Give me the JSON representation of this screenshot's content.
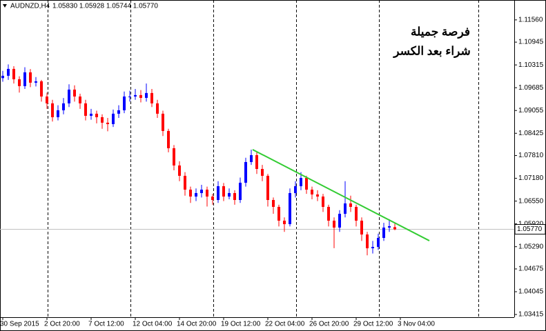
{
  "chart_data": {
    "type": "candlestick",
    "symbol": "AUDNZD,H4",
    "ohlc_text": "1.05830 1.05928 1.05744 1.05770",
    "annotations": [
      "فرصة جميلة",
      "شراء بعد الكسر"
    ],
    "annotation_color": "#3a4fd0",
    "up_color": "#0000ff",
    "down_color": "#ff0000",
    "categories": [
      "30 Sep 2015",
      null,
      null,
      null,
      null,
      null,
      null,
      null,
      "2 Oct 20:00",
      null,
      null,
      null,
      null,
      null,
      null,
      null,
      "7 Oct 12:00",
      null,
      null,
      null,
      null,
      null,
      null,
      null,
      "12 Oct 04:00",
      null,
      null,
      null,
      null,
      null,
      null,
      null,
      "14 Oct 20:00",
      null,
      null,
      null,
      null,
      null,
      null,
      null,
      "19 Oct 12:00",
      null,
      null,
      null,
      null,
      null,
      null,
      null,
      "22 Oct 04:00",
      null,
      null,
      null,
      null,
      null,
      null,
      null,
      "26 Oct 20:00",
      null,
      null,
      null,
      null,
      null,
      null,
      null,
      "29 Oct 12:00",
      null,
      null,
      null,
      null,
      null,
      null,
      null,
      "3 Nov 04:00"
    ],
    "open": [
      1.0995,
      1.10015,
      1.10205,
      1.09919,
      1.09729,
      1.1011,
      1.09824,
      1.09862,
      1.09442,
      1.09252,
      1.0887,
      1.09061,
      1.09252,
      1.09633,
      1.09442,
      1.09252,
      1.08908,
      1.08966,
      1.0887,
      1.08718,
      1.08679,
      1.08966,
      1.09061,
      1.09442,
      1.09442,
      1.09481,
      1.09404,
      1.09538,
      1.09252,
      1.08966,
      1.08489,
      1.08012,
      1.07535,
      1.07249,
      1.06867,
      1.06676,
      1.06772,
      1.06867,
      1.06676,
      1.06581,
      1.06962,
      1.06676,
      1.06772,
      1.06581,
      1.07058,
      1.0763,
      1.07821,
      1.07439,
      1.07249,
      1.06581,
      1.0639,
      1.06009,
      1.05913,
      1.06772,
      1.06962,
      1.07191,
      1.06867,
      1.06734,
      1.06676,
      1.0639,
      1.06009,
      1.05818,
      1.06199,
      1.06486,
      1.0639,
      1.06009,
      1.05627,
      1.05246,
      1.05284,
      1.05532,
      1.05818,
      1.0583,
      null
    ],
    "high": [
      1.1015,
      1.1033,
      1.1028,
      1.1,
      1.1025,
      1.102,
      1.0998,
      1.099,
      1.0955,
      1.0935,
      1.092,
      1.094,
      1.0978,
      1.0975,
      1.0952,
      1.0935,
      1.091,
      1.0905,
      1.0895,
      1.0885,
      1.0908,
      1.092,
      1.0958,
      1.096,
      1.0965,
      1.0962,
      1.098,
      1.0965,
      1.0935,
      1.0905,
      1.0855,
      1.081,
      1.0765,
      1.0735,
      1.0695,
      1.069,
      1.07,
      1.0695,
      1.0675,
      1.071,
      1.0705,
      1.069,
      1.0685,
      1.072,
      1.0775,
      1.07974,
      1.079,
      1.0755,
      1.073,
      1.0665,
      1.0645,
      1.061,
      1.069,
      1.071,
      1.0735,
      1.0725,
      1.0695,
      1.0685,
      1.0675,
      1.0645,
      1.061,
      1.063,
      1.071,
      1.067,
      1.0645,
      1.061,
      1.057,
      1.0545,
      1.0565,
      1.0595,
      1.0605,
      1.05928,
      null
    ],
    "low": [
      1.0985,
      1.099,
      1.098,
      1.0955,
      1.0965,
      1.097,
      1.0972,
      1.093,
      1.091,
      1.0875,
      1.0878,
      1.0895,
      1.0915,
      1.093,
      1.091,
      1.0878,
      1.088,
      1.087,
      1.0855,
      1.0848,
      1.086,
      1.0885,
      1.0898,
      1.093,
      1.0935,
      1.0928,
      1.093,
      1.0915,
      1.0885,
      1.0835,
      1.079,
      1.074,
      1.071,
      1.067,
      1.065,
      1.0655,
      1.0665,
      1.064,
      1.0645,
      1.065,
      1.0655,
      1.066,
      1.0645,
      1.065,
      1.0695,
      1.0755,
      1.073,
      1.071,
      1.064,
      1.062,
      1.0585,
      1.057,
      1.0585,
      1.0665,
      1.0685,
      1.0675,
      1.066,
      1.0655,
      1.0625,
      1.0585,
      1.0525,
      1.057,
      1.061,
      1.0625,
      1.0585,
      1.0545,
      1.0505,
      1.051,
      1.052,
      1.0545,
      1.057,
      1.05744,
      null
    ],
    "close": [
      1.10015,
      1.10205,
      1.09919,
      1.09729,
      1.1011,
      1.09824,
      1.09862,
      1.09442,
      1.09252,
      1.0887,
      1.09061,
      1.09252,
      1.09633,
      1.09442,
      1.09252,
      1.08908,
      1.08966,
      1.0887,
      1.08718,
      1.08679,
      1.08966,
      1.09061,
      1.09442,
      1.09442,
      1.09481,
      1.09404,
      1.09538,
      1.09252,
      1.08966,
      1.08489,
      1.08012,
      1.07535,
      1.07249,
      1.06867,
      1.06676,
      1.06772,
      1.06867,
      1.06676,
      1.06581,
      1.06962,
      1.06676,
      1.06772,
      1.06581,
      1.07058,
      1.0763,
      1.07821,
      1.07439,
      1.07249,
      1.06581,
      1.0639,
      1.06009,
      1.05913,
      1.06772,
      1.06962,
      1.07191,
      1.06867,
      1.06734,
      1.06676,
      1.0639,
      1.06009,
      1.05818,
      1.06199,
      1.06486,
      1.0639,
      1.06009,
      1.05627,
      1.05246,
      1.05284,
      1.05532,
      1.05818,
      1.05856,
      1.0577,
      null
    ],
    "last_price": {
      "value": 1.0577,
      "label": "1.05770"
    },
    "trendline": {
      "color": "#33cc33",
      "x": [
        45.25,
        77.25
      ],
      "y": [
        1.07974,
        1.05455
      ]
    },
    "ylim": [
      1.0334,
      1.1211
    ],
    "yticks": [
      {
        "value": 1.1156,
        "label": "1.11560"
      },
      {
        "value": 1.10945,
        "label": "1.10945"
      },
      {
        "value": 1.10315,
        "label": "1.10315"
      },
      {
        "value": 1.09685,
        "label": "1.09685"
      },
      {
        "value": 1.09055,
        "label": "1.09055"
      },
      {
        "value": 1.08425,
        "label": "1.08425"
      },
      {
        "value": 1.0781,
        "label": "1.07810"
      },
      {
        "value": 1.0718,
        "label": "1.07180"
      },
      {
        "value": 1.0655,
        "label": "1.06550"
      },
      {
        "value": 1.0592,
        "label": "1.05920"
      },
      {
        "value": 1.0529,
        "label": "1.05290"
      },
      {
        "value": 1.04675,
        "label": "1.04675"
      },
      {
        "value": 1.04045,
        "label": "1.04045"
      },
      {
        "value": 1.03415,
        "label": "1.03415"
      }
    ]
  }
}
